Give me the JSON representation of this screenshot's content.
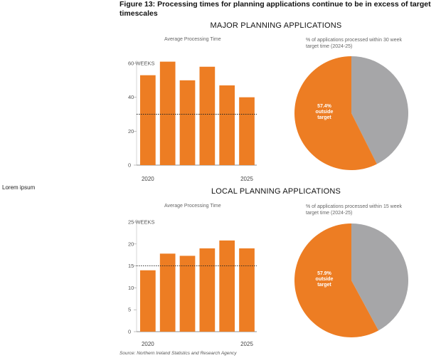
{
  "side_label": "Lorem ipsum",
  "figure_title": "Figure 13: Processing times for planning applications continue to be in excess of target timescales",
  "source": "Source: Northern Ireland Statistics and Research Agency",
  "colors": {
    "bar": "#ed7d23",
    "pie_outside": "#ed7d23",
    "pie_inside": "#a6a6a8",
    "axis": "#333333"
  },
  "sections": {
    "major": {
      "title": "MAJOR PLANNING APPLICATIONS",
      "bar_caption": "Average Processing Time",
      "pie_caption": "% of applications processed within 30 week target time (2024-25)"
    },
    "local": {
      "title": "LOCAL PLANNING APPLICATIONS",
      "bar_caption": "Average Processing Time",
      "pie_caption": "% of applications processed within 15 week target time (2024-25)"
    }
  },
  "chart_data": [
    {
      "type": "bar",
      "title": "Average Processing Time",
      "ylim": [
        0,
        60
      ],
      "yticks": [
        "0",
        "20",
        "40",
        "60 WEEKS"
      ],
      "ytick_values": [
        0,
        20,
        40,
        60
      ],
      "values": [
        53,
        61,
        50,
        58,
        47,
        40
      ],
      "xtick_labels": [
        "2020",
        "2025"
      ],
      "target_line": 30,
      "target_style": "dotted"
    },
    {
      "type": "pie",
      "title": "% of applications processed within 30 week target time (2024-25)",
      "slices": [
        {
          "label": "57.4% outside target",
          "label_lines": [
            "57.4%",
            "outside",
            "target"
          ],
          "value": 57.4
        },
        {
          "label": "",
          "value": 42.6
        }
      ]
    },
    {
      "type": "bar",
      "title": "Average Processing Time",
      "ylim": [
        0,
        25
      ],
      "yticks": [
        "0",
        "5",
        "10",
        "15",
        "20",
        "25 WEEKS"
      ],
      "ytick_values": [
        0,
        5,
        10,
        15,
        20,
        25
      ],
      "values": [
        14,
        17.8,
        17.3,
        19,
        20.8,
        19
      ],
      "xtick_labels": [
        "2020",
        "2025"
      ],
      "target_line": 15,
      "target_style": "dotted"
    },
    {
      "type": "pie",
      "title": "% of applications processed within 15 week target time (2024-25)",
      "slices": [
        {
          "label": "57.9% outside target",
          "label_lines": [
            "57.9%",
            "outside",
            "target"
          ],
          "value": 57.9
        },
        {
          "label": "",
          "value": 42.1
        }
      ]
    }
  ]
}
